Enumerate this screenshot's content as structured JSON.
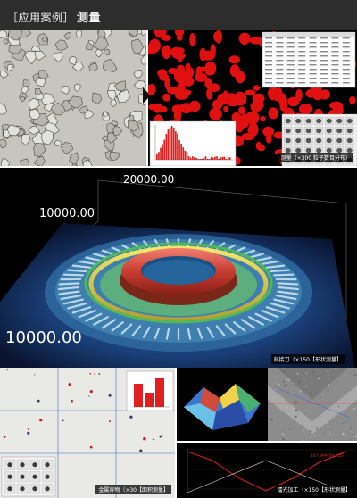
{
  "header": {
    "prefix": "［应用案例］",
    "title": "测量"
  },
  "axis_3d": {
    "label_top": "20000.00",
    "label_mid": "10000.00",
    "label_bottom": "10000.00"
  },
  "captions": {
    "crystal_count": "测量（×300 粒子数目分布）",
    "grinder": "刻接刀（×150【形状测量】",
    "metal_impurity": "金属异物（×30【面积测量】",
    "laser_processing": "镭光加工（×150【形状测量】"
  },
  "profile": {
    "readout": "167.999-59.222"
  },
  "colors": {
    "header_bg": "#2d2d2d",
    "particle_red": "#e01010",
    "grid_line": "#3a6fd0"
  }
}
